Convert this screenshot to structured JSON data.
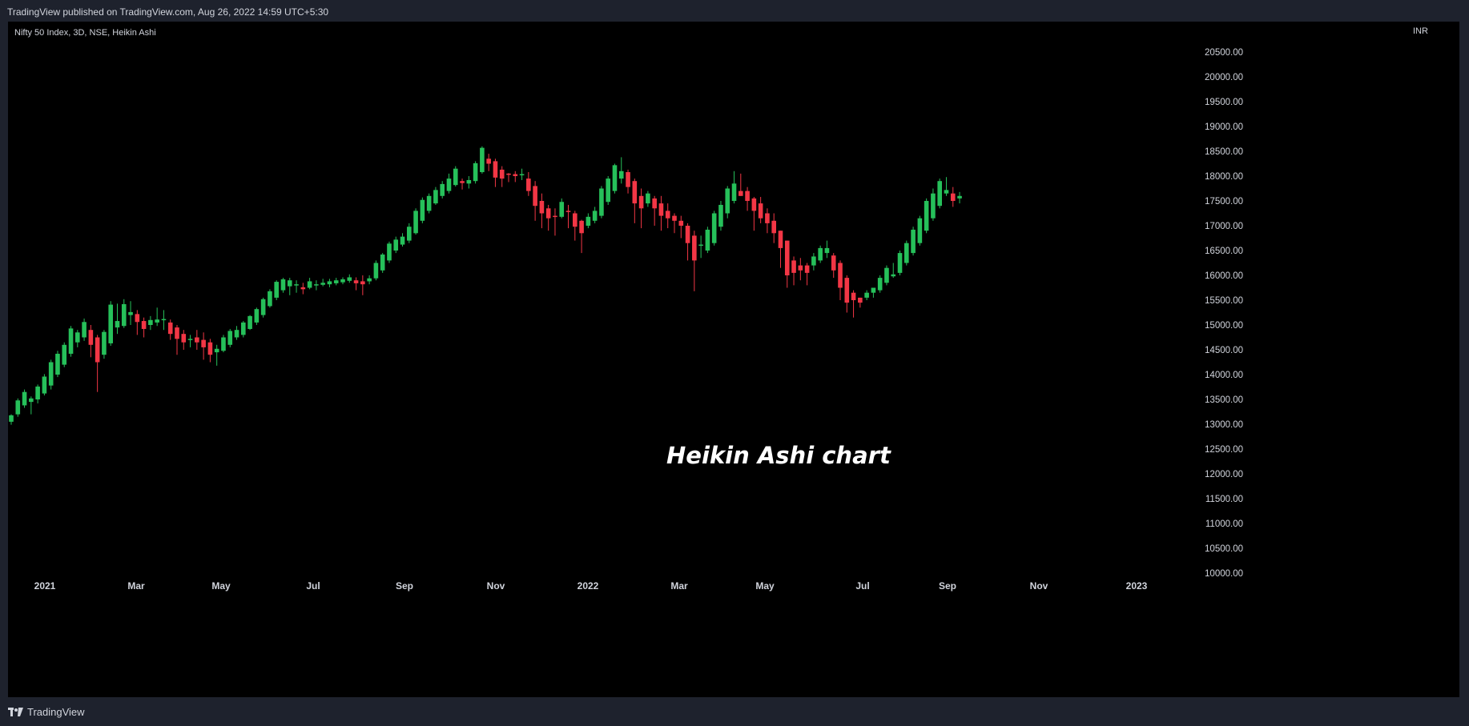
{
  "header": {
    "published_text": "TradingView published on TradingView.com, Aug 26, 2022 14:59 UTC+5:30"
  },
  "chart_data": {
    "type": "candlestick",
    "title": "Nifty 50 Index, 3D, NSE, Heikin Ashi",
    "annotation": "Heikin Ashi chart",
    "currency": "INR",
    "colors": {
      "up": "#26c05a",
      "down": "#f23645",
      "background": "#000000"
    },
    "ylim": [
      9750,
      21000
    ],
    "y_ticks": [
      "20500.00",
      "20000.00",
      "19500.00",
      "19000.00",
      "18500.00",
      "18000.00",
      "17500.00",
      "17000.00",
      "16500.00",
      "16000.00",
      "15500.00",
      "15000.00",
      "14500.00",
      "14000.00",
      "13500.00",
      "13000.00",
      "12500.00",
      "12000.00",
      "11500.00",
      "11000.00",
      "10500.00",
      "10000.00"
    ],
    "x_ticks": [
      "2021",
      "Mar",
      "May",
      "Jul",
      "Sep",
      "Nov",
      "2022",
      "Mar",
      "May",
      "Jul",
      "Sep",
      "Nov",
      "2023"
    ],
    "grid": false,
    "ohlc": [
      [
        13050,
        13200,
        12990,
        13180
      ],
      [
        13200,
        13520,
        13150,
        13480
      ],
      [
        13380,
        13700,
        13330,
        13650
      ],
      [
        13450,
        13560,
        13200,
        13520
      ],
      [
        13500,
        13800,
        13420,
        13760
      ],
      [
        13620,
        14010,
        13580,
        13960
      ],
      [
        13780,
        14300,
        13700,
        14250
      ],
      [
        14000,
        14480,
        13950,
        14420
      ],
      [
        14200,
        14650,
        14150,
        14600
      ],
      [
        14420,
        14980,
        14360,
        14930
      ],
      [
        14650,
        14900,
        14550,
        14850
      ],
      [
        14750,
        15130,
        14680,
        15060
      ],
      [
        14900,
        15000,
        14350,
        14600
      ],
      [
        14750,
        14800,
        13650,
        14250
      ],
      [
        14400,
        14900,
        14320,
        14860
      ],
      [
        14630,
        15480,
        14580,
        15410
      ],
      [
        14950,
        15430,
        14820,
        15080
      ],
      [
        14980,
        15520,
        14940,
        15420
      ],
      [
        15200,
        15480,
        15000,
        15260
      ],
      [
        15220,
        15300,
        14800,
        15060
      ],
      [
        15080,
        15150,
        14750,
        14920
      ],
      [
        15000,
        15180,
        14900,
        15100
      ],
      [
        15050,
        15350,
        14980,
        15110
      ],
      [
        15100,
        15300,
        14900,
        15120
      ],
      [
        15050,
        15110,
        14700,
        14820
      ],
      [
        14950,
        15000,
        14400,
        14720
      ],
      [
        14820,
        14900,
        14500,
        14650
      ],
      [
        14700,
        14800,
        14550,
        14720
      ],
      [
        14750,
        14900,
        14500,
        14650
      ],
      [
        14700,
        14850,
        14300,
        14550
      ],
      [
        14650,
        14720,
        14250,
        14400
      ],
      [
        14450,
        14600,
        14180,
        14520
      ],
      [
        14480,
        14800,
        14450,
        14750
      ],
      [
        14600,
        14920,
        14550,
        14880
      ],
      [
        14750,
        14980,
        14700,
        14900
      ],
      [
        14800,
        15080,
        14750,
        15050
      ],
      [
        14920,
        15200,
        14900,
        15180
      ],
      [
        15050,
        15350,
        15000,
        15320
      ],
      [
        15200,
        15550,
        15150,
        15520
      ],
      [
        15380,
        15720,
        15350,
        15680
      ],
      [
        15550,
        15900,
        15500,
        15870
      ],
      [
        15700,
        15950,
        15650,
        15920
      ],
      [
        15780,
        15950,
        15600,
        15900
      ],
      [
        15800,
        15900,
        15650,
        15820
      ],
      [
        15760,
        15850,
        15620,
        15720
      ],
      [
        15750,
        15950,
        15720,
        15880
      ],
      [
        15800,
        15900,
        15700,
        15820
      ],
      [
        15810,
        15930,
        15780,
        15850
      ],
      [
        15820,
        15930,
        15760,
        15880
      ],
      [
        15840,
        15950,
        15800,
        15900
      ],
      [
        15860,
        15960,
        15820,
        15920
      ],
      [
        15890,
        16020,
        15850,
        15960
      ],
      [
        15900,
        15960,
        15700,
        15840
      ],
      [
        15880,
        16000,
        15600,
        15820
      ],
      [
        15880,
        16000,
        15820,
        15940
      ],
      [
        15940,
        16300,
        15900,
        16250
      ],
      [
        16100,
        16450,
        16050,
        16420
      ],
      [
        16300,
        16680,
        16250,
        16640
      ],
      [
        16500,
        16780,
        16450,
        16720
      ],
      [
        16620,
        16850,
        16580,
        16780
      ],
      [
        16700,
        17050,
        16650,
        16980
      ],
      [
        16850,
        17350,
        16820,
        17300
      ],
      [
        17100,
        17570,
        17050,
        17520
      ],
      [
        17300,
        17650,
        17250,
        17600
      ],
      [
        17450,
        17780,
        17420,
        17720
      ],
      [
        17600,
        17900,
        17550,
        17840
      ],
      [
        17700,
        18050,
        17650,
        17950
      ],
      [
        17820,
        18200,
        17790,
        18150
      ],
      [
        17900,
        17950,
        17730,
        17860
      ],
      [
        17850,
        18000,
        17750,
        17920
      ],
      [
        17900,
        18300,
        17850,
        18260
      ],
      [
        18080,
        18600,
        18050,
        18570
      ],
      [
        18350,
        18450,
        18100,
        18250
      ],
      [
        18300,
        18350,
        17780,
        17970
      ],
      [
        18130,
        18200,
        17780,
        17950
      ],
      [
        18050,
        18060,
        17880,
        18030
      ],
      [
        18040,
        18100,
        17880,
        18000
      ],
      [
        18020,
        18150,
        17920,
        18040
      ],
      [
        17950,
        18080,
        17600,
        17700
      ],
      [
        17800,
        17900,
        17100,
        17400
      ],
      [
        17500,
        17650,
        16950,
        17250
      ],
      [
        17350,
        17420,
        16900,
        17150
      ],
      [
        17200,
        17350,
        16800,
        17180
      ],
      [
        17180,
        17550,
        17150,
        17480
      ],
      [
        17300,
        17420,
        16950,
        17280
      ],
      [
        17250,
        17300,
        16700,
        16980
      ],
      [
        17100,
        17120,
        16450,
        16850
      ],
      [
        17000,
        17250,
        16950,
        17180
      ],
      [
        17100,
        17380,
        17050,
        17300
      ],
      [
        17200,
        17800,
        17150,
        17750
      ],
      [
        17480,
        18000,
        17420,
        17950
      ],
      [
        17700,
        18250,
        17650,
        18220
      ],
      [
        17950,
        18380,
        17850,
        18100
      ],
      [
        18080,
        18130,
        17650,
        17780
      ],
      [
        17900,
        17950,
        17050,
        17450
      ],
      [
        17600,
        17750,
        16950,
        17350
      ],
      [
        17450,
        17700,
        17380,
        17650
      ],
      [
        17550,
        17600,
        17000,
        17350
      ],
      [
        17450,
        17600,
        16900,
        17200
      ],
      [
        17300,
        17450,
        16950,
        17150
      ],
      [
        17200,
        17250,
        16850,
        17100
      ],
      [
        17100,
        17200,
        16750,
        17000
      ],
      [
        17000,
        17050,
        16300,
        16650
      ],
      [
        16800,
        16900,
        15680,
        16300
      ],
      [
        16600,
        16800,
        16350,
        16620
      ],
      [
        16500,
        16980,
        16450,
        16920
      ],
      [
        16650,
        17300,
        16600,
        17250
      ],
      [
        16980,
        17500,
        16900,
        17420
      ],
      [
        17250,
        17800,
        17150,
        17750
      ],
      [
        17500,
        18100,
        17450,
        17850
      ],
      [
        17700,
        18050,
        17600,
        17600
      ],
      [
        17700,
        17780,
        17300,
        17500
      ],
      [
        17550,
        17580,
        16900,
        17300
      ],
      [
        17450,
        17580,
        17050,
        17150
      ],
      [
        17250,
        17350,
        16850,
        17050
      ],
      [
        17100,
        17250,
        16650,
        16850
      ],
      [
        16900,
        16900,
        16150,
        16550
      ],
      [
        16700,
        16700,
        15750,
        16000
      ],
      [
        16300,
        16380,
        15800,
        16050
      ],
      [
        16200,
        16350,
        15900,
        16100
      ],
      [
        16200,
        16250,
        15800,
        16050
      ],
      [
        16200,
        16450,
        16100,
        16380
      ],
      [
        16300,
        16600,
        16250,
        16550
      ],
      [
        16450,
        16700,
        16350,
        16550
      ],
      [
        16400,
        16450,
        15950,
        16100
      ],
      [
        16250,
        16300,
        15500,
        15750
      ],
      [
        15950,
        16000,
        15250,
        15450
      ],
      [
        15650,
        15700,
        15150,
        15500
      ],
      [
        15550,
        15550,
        15350,
        15450
      ],
      [
        15550,
        15700,
        15500,
        15650
      ],
      [
        15650,
        15750,
        15550,
        15750
      ],
      [
        15700,
        16000,
        15650,
        15950
      ],
      [
        15850,
        16200,
        15800,
        16150
      ],
      [
        15980,
        16250,
        15950,
        16020
      ],
      [
        16050,
        16500,
        16000,
        16450
      ],
      [
        16250,
        16700,
        16200,
        16650
      ],
      [
        16450,
        16980,
        16400,
        16920
      ],
      [
        16650,
        17200,
        16600,
        17150
      ],
      [
        16900,
        17550,
        16850,
        17500
      ],
      [
        17150,
        17750,
        17100,
        17650
      ],
      [
        17400,
        17950,
        17350,
        17900
      ],
      [
        17650,
        17980,
        17600,
        17720
      ],
      [
        17650,
        17780,
        17380,
        17500
      ],
      [
        17550,
        17680,
        17450,
        17600
      ]
    ]
  }
}
